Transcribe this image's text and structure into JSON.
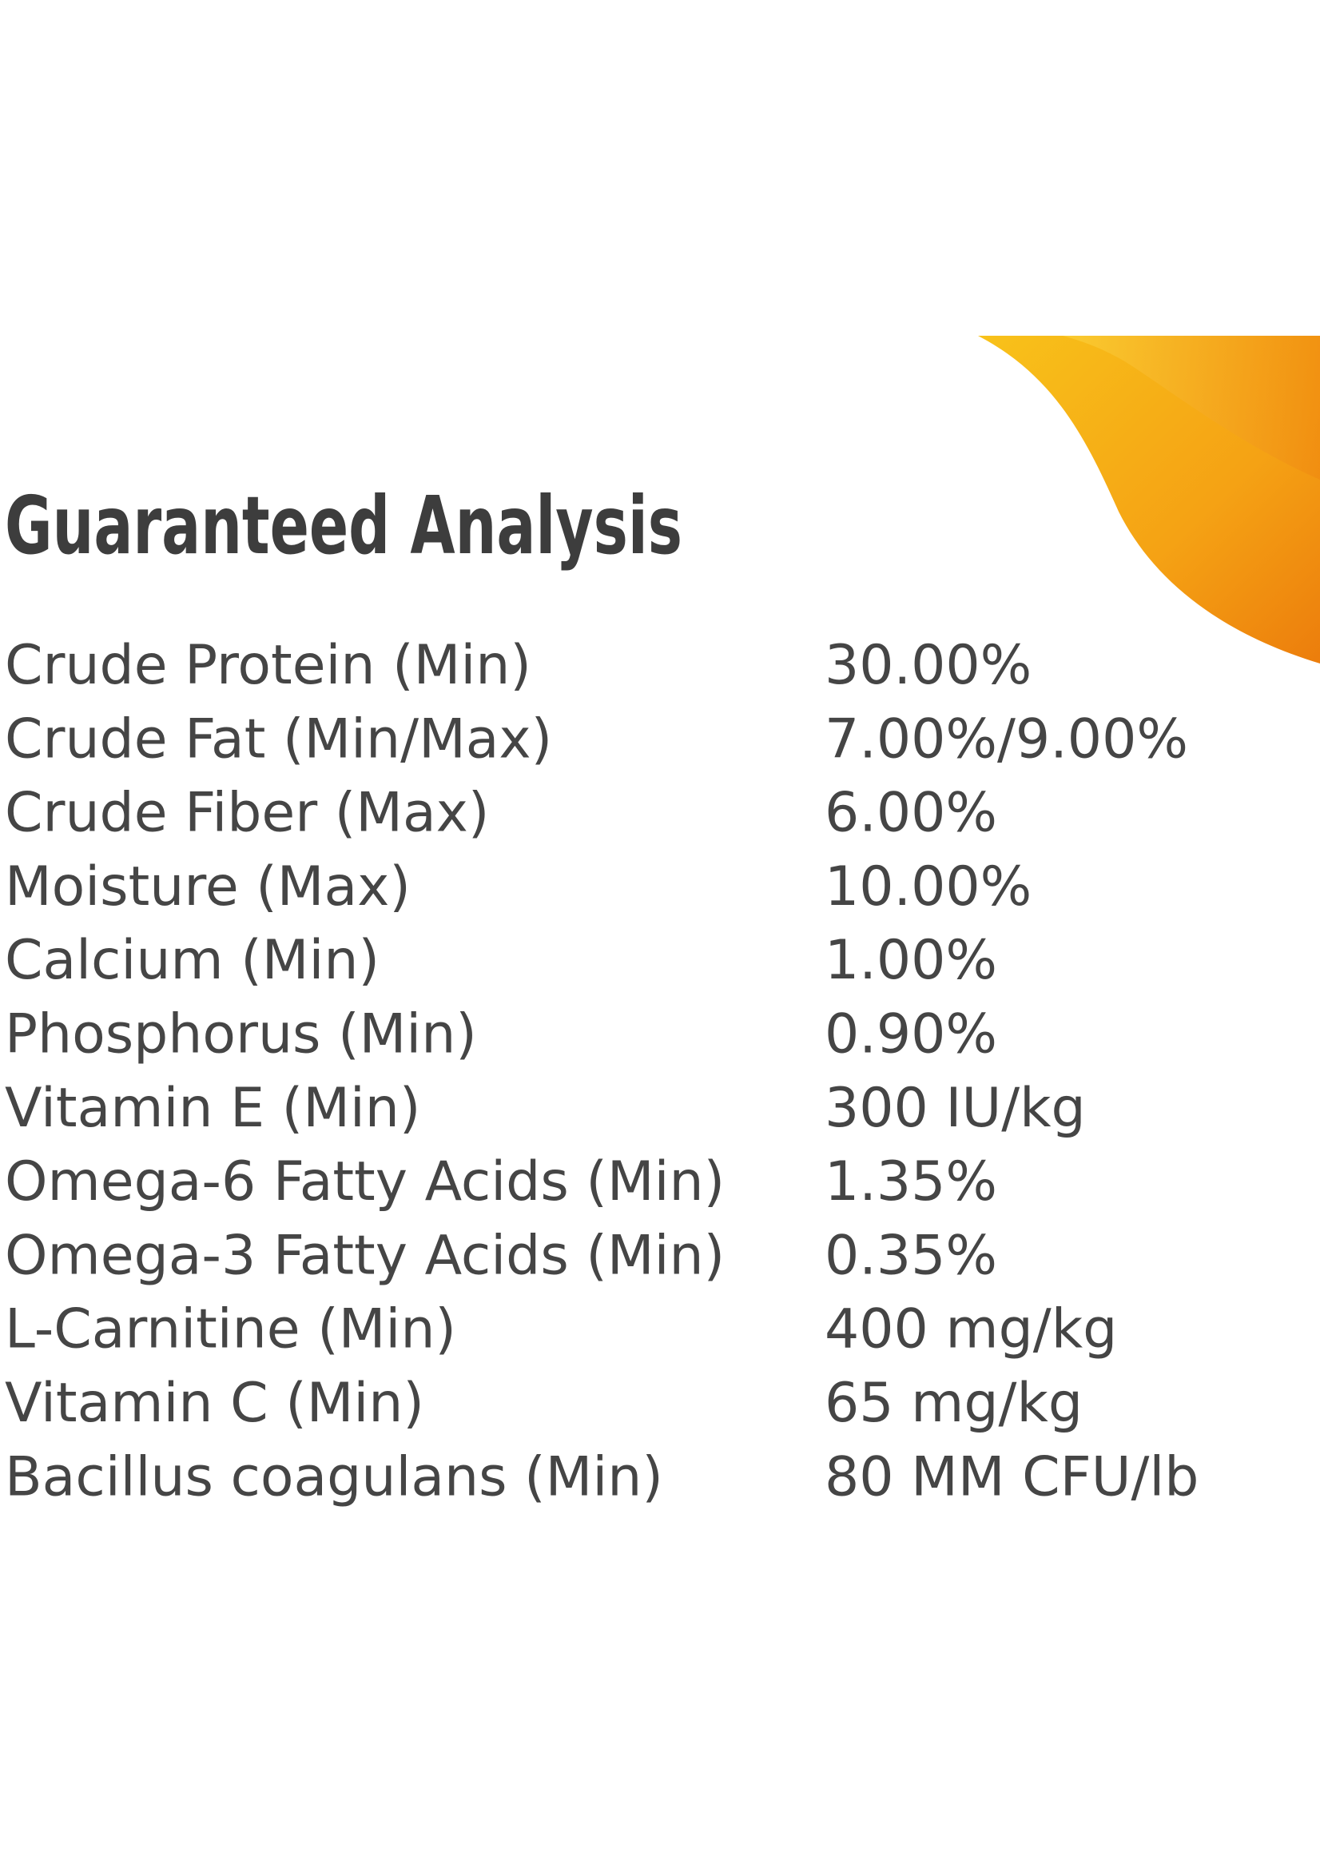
{
  "header": {
    "title": "Guaranteed Analysis"
  },
  "table": {
    "rows": [
      [
        "Crude Protein (Min)",
        "30.00%"
      ],
      [
        "Crude Fat (Min/Max)",
        "7.00%/9.00%"
      ],
      [
        "Crude Fiber (Max)",
        "6.00%"
      ],
      [
        "Moisture (Max)",
        "10.00%"
      ],
      [
        "Calcium (Min)",
        "1.00%"
      ],
      [
        "Phosphorus (Min)",
        "0.90%"
      ],
      [
        "Vitamin E (Min)",
        "300 IU/kg"
      ],
      [
        "Omega-6 Fatty Acids (Min)",
        "1.35%"
      ],
      [
        "Omega-3 Fatty Acids (Min)",
        "0.35%"
      ],
      [
        "L-Carnitine (Min)",
        "400 mg/kg"
      ],
      [
        "Vitamin C (Min)",
        "65 mg/kg"
      ],
      [
        "Bacillus coagulans (Min)",
        "80 MM CFU/lb"
      ]
    ]
  }
}
